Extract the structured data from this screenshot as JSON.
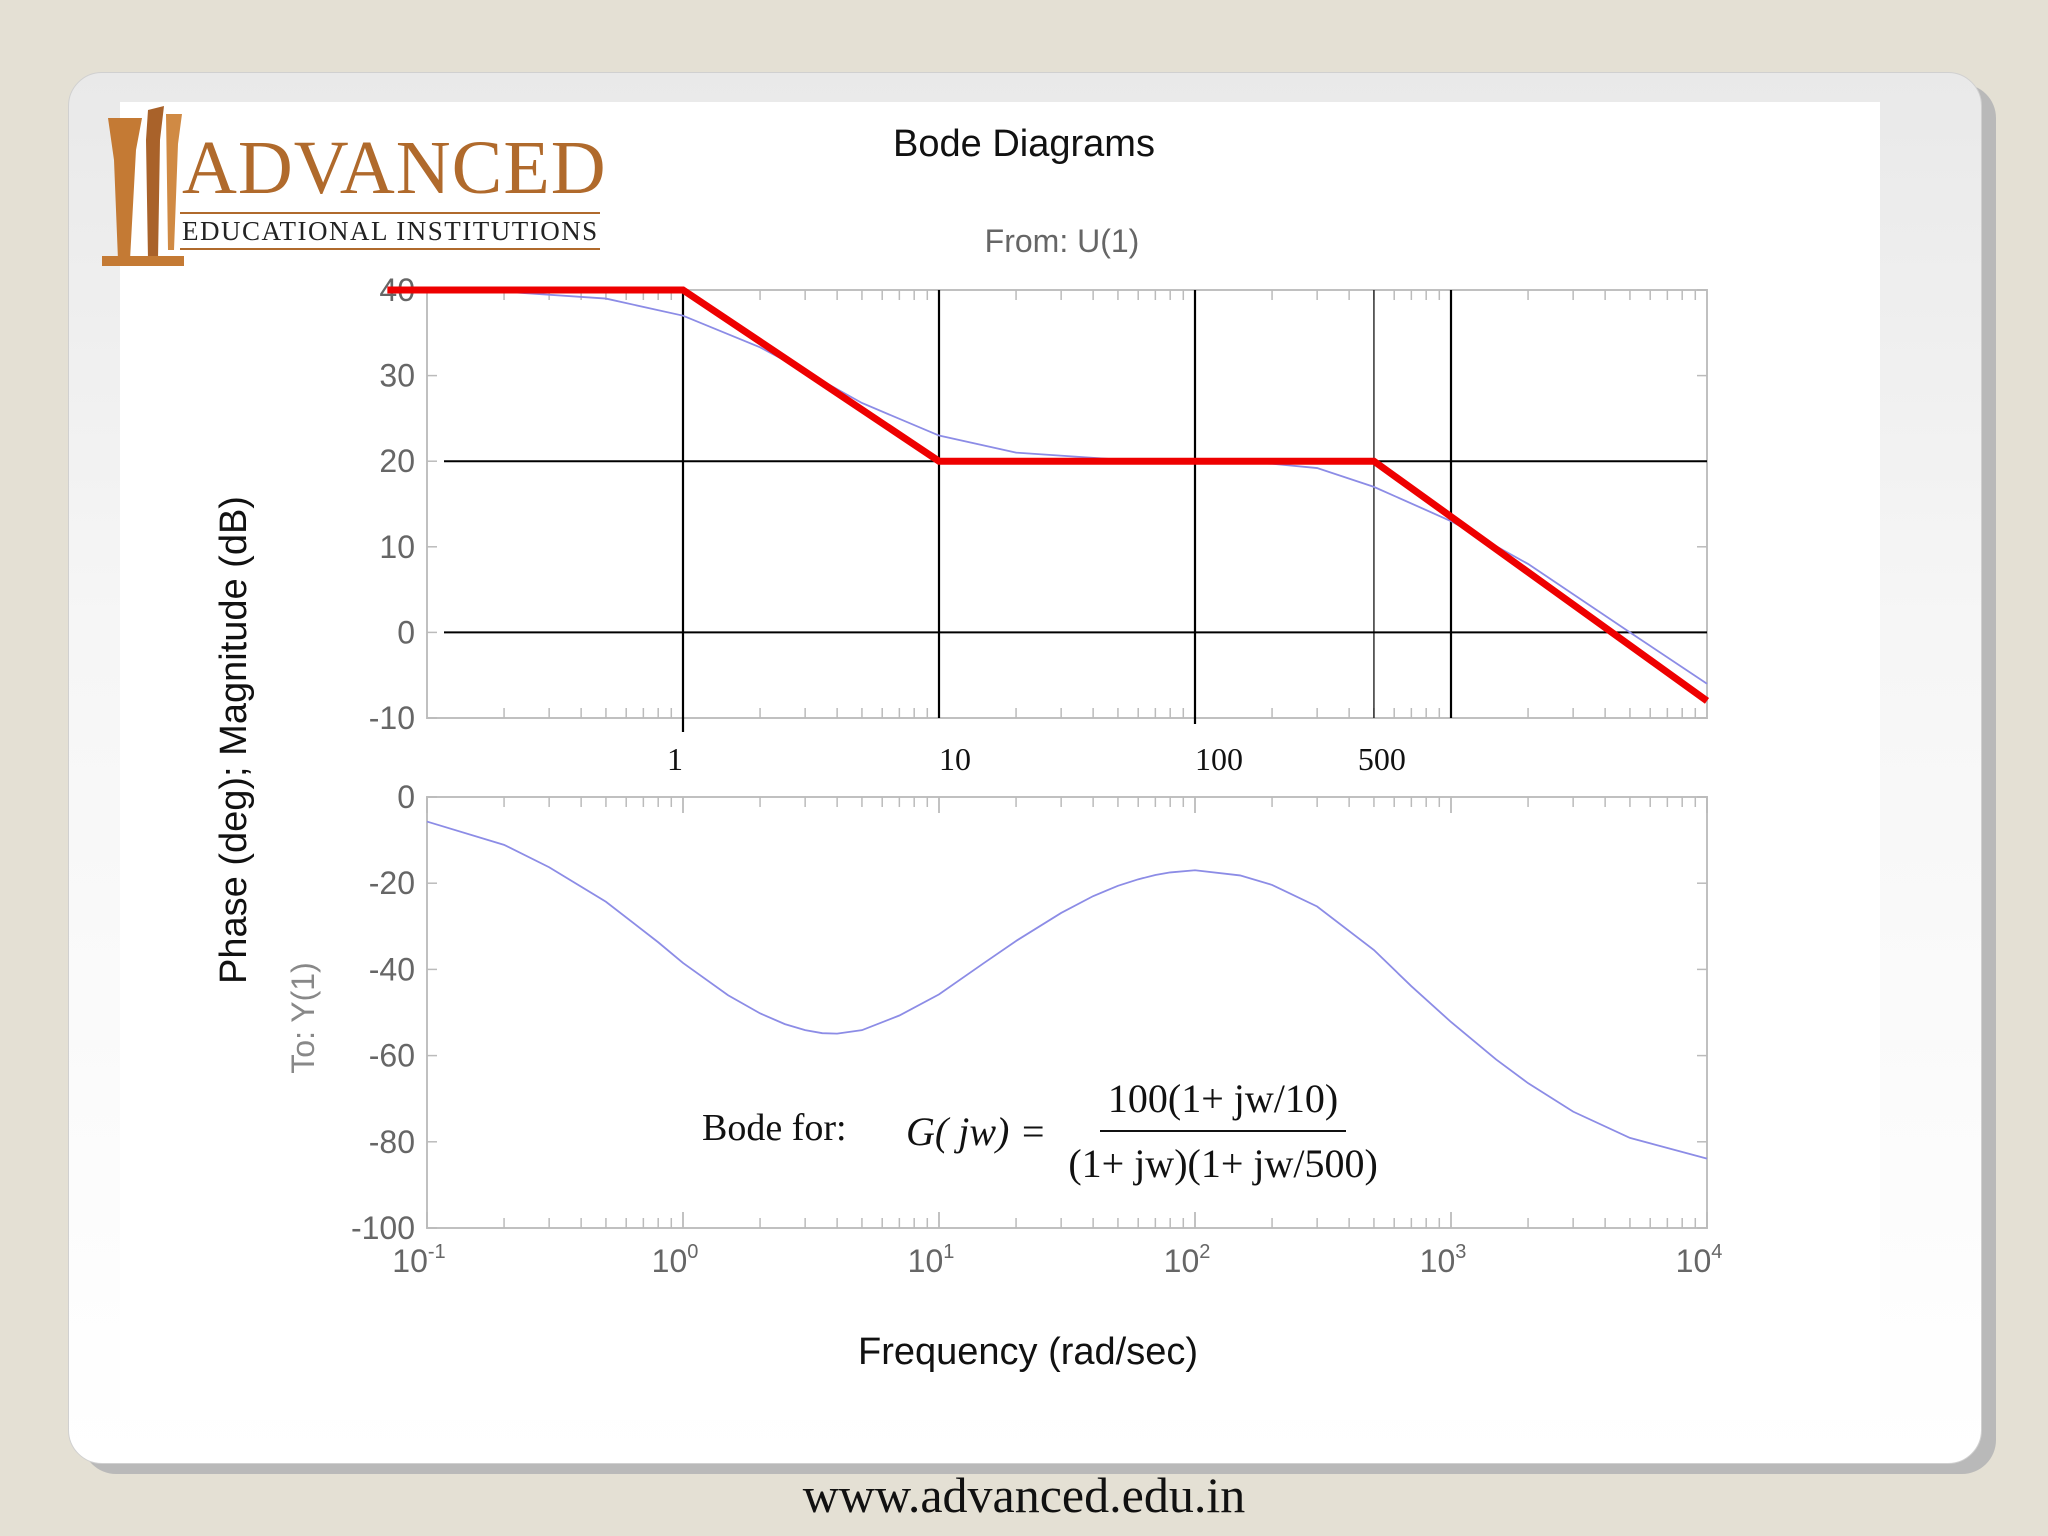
{
  "logo": {
    "word": "ADVANCED",
    "subtitle": "EDUCATIONAL INSTITUTIONS"
  },
  "footer": {
    "url": "www.advanced.edu.in"
  },
  "annotation": {
    "label": "Bode for:",
    "lhs": "G( jw) =",
    "numerator": "100(1+ jw/10)",
    "denominator": "(1+ jw)(1+ jw/500)"
  },
  "colors": {
    "asymptote": "#ee0000",
    "exact_curve": "#8c8ce6",
    "grid_dark": "#000000",
    "grid_light": "#bbbbbb",
    "frame": "#c0c0c0",
    "tick_text": "#666666"
  },
  "chart_data": {
    "type": "line",
    "title": "Bode Diagrams",
    "subtitle": "From: U(1)",
    "ylabel": "Phase (deg); Magnitude (dB)",
    "ylabel_secondary": "To: Y(1)",
    "xlabel": "Frequency (rad/sec)",
    "x_scale": "log",
    "xlim": [
      0.1,
      10000
    ],
    "x_tick_labels": [
      {
        "value": 0.1,
        "base": "10",
        "exp": "-1"
      },
      {
        "value": 1,
        "base": "10",
        "exp": "0"
      },
      {
        "value": 10,
        "base": "10",
        "exp": "1"
      },
      {
        "value": 100,
        "base": "10",
        "exp": "2"
      },
      {
        "value": 1000,
        "base": "10",
        "exp": "3"
      },
      {
        "value": 10000,
        "base": "10",
        "exp": "4"
      }
    ],
    "breakpoint_labels": [
      {
        "value": 1,
        "text": "1"
      },
      {
        "value": 10,
        "text": "10"
      },
      {
        "value": 100,
        "text": "100"
      },
      {
        "value": 500,
        "text": "500"
      }
    ],
    "magnitude": {
      "ylim": [
        -10,
        40
      ],
      "yticks": [
        40,
        30,
        20,
        10,
        0,
        -10
      ],
      "y_tick_labels": [
        "40",
        "30",
        "20",
        "10",
        "0",
        "-10"
      ],
      "asymptote": {
        "x": [
          0.07,
          1,
          10,
          500,
          10000
        ],
        "y": [
          40,
          40,
          20,
          20,
          -8
        ]
      },
      "exact": {
        "x": [
          0.1,
          0.2,
          0.5,
          1,
          2,
          3,
          5,
          10,
          20,
          50,
          100,
          200,
          300,
          500,
          1000,
          2000,
          5000,
          10000
        ],
        "y": [
          40,
          39.8,
          39,
          37,
          33.3,
          30.5,
          26.8,
          23,
          21,
          20.2,
          20,
          19.7,
          19.2,
          17,
          13,
          8,
          0,
          -6
        ]
      },
      "reference_lines_y": [
        20,
        0
      ],
      "reference_lines_x": [
        1,
        10,
        100,
        500,
        1000
      ]
    },
    "phase": {
      "ylim": [
        -100,
        0
      ],
      "yticks": [
        0,
        -20,
        -40,
        -60,
        -80,
        -100
      ],
      "y_tick_labels": [
        "0",
        "-20",
        "-40",
        "-60",
        "-80",
        "-100"
      ],
      "exact": {
        "x": [
          0.1,
          0.2,
          0.3,
          0.5,
          0.8,
          1,
          1.5,
          2,
          2.5,
          3,
          3.5,
          4,
          5,
          7,
          10,
          15,
          20,
          30,
          40,
          50,
          60,
          70,
          80,
          100,
          150,
          200,
          300,
          500,
          700,
          1000,
          1500,
          2000,
          3000,
          5000,
          10000
        ],
        "y": [
          -5.7,
          -11.1,
          -16.3,
          -24.3,
          -33.7,
          -38.5,
          -46,
          -50.2,
          -52.7,
          -54.1,
          -54.8,
          -54.9,
          -54.1,
          -50.7,
          -45.8,
          -38.5,
          -33.4,
          -26.9,
          -23,
          -20.6,
          -19.1,
          -18.1,
          -17.5,
          -17,
          -18.2,
          -20.4,
          -25.4,
          -35.5,
          -43.9,
          -52.2,
          -60.9,
          -66.4,
          -73,
          -79.1,
          -83.9
        ]
      }
    }
  }
}
